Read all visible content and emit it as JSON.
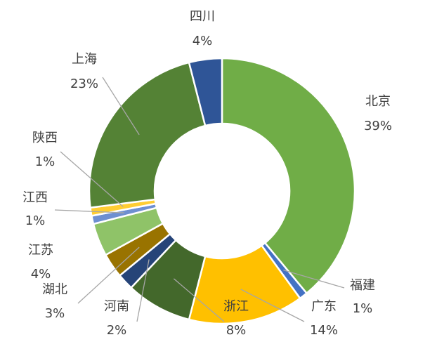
{
  "chart_data": {
    "type": "pie",
    "variant": "donut",
    "title": "",
    "legend": "none",
    "slices": [
      {
        "label": "北京",
        "value": 39,
        "display": "39%",
        "color": "#70AD47"
      },
      {
        "label": "福建",
        "value": 1,
        "display": "1%",
        "color": "#4472C4"
      },
      {
        "label": "广东",
        "value": 14,
        "display": "14%",
        "color": "#FFC000"
      },
      {
        "label": "浙江",
        "value": 8,
        "display": "8%",
        "color": "#43682B"
      },
      {
        "label": "河南",
        "value": 2,
        "display": "2%",
        "color": "#264478"
      },
      {
        "label": "湖北",
        "value": 3,
        "display": "3%",
        "color": "#997300"
      },
      {
        "label": "江苏",
        "value": 4,
        "display": "4%",
        "color": "#8FC368"
      },
      {
        "label": "江西",
        "value": 1,
        "display": "1%",
        "color": "#6E8FD1"
      },
      {
        "label": "陕西",
        "value": 1,
        "display": "1%",
        "color": "#FFCD33"
      },
      {
        "label": "上海",
        "value": 23,
        "display": "23%",
        "color": "#548235"
      },
      {
        "label": "四川",
        "value": 4,
        "display": "4%",
        "color": "#2F5597"
      }
    ]
  }
}
